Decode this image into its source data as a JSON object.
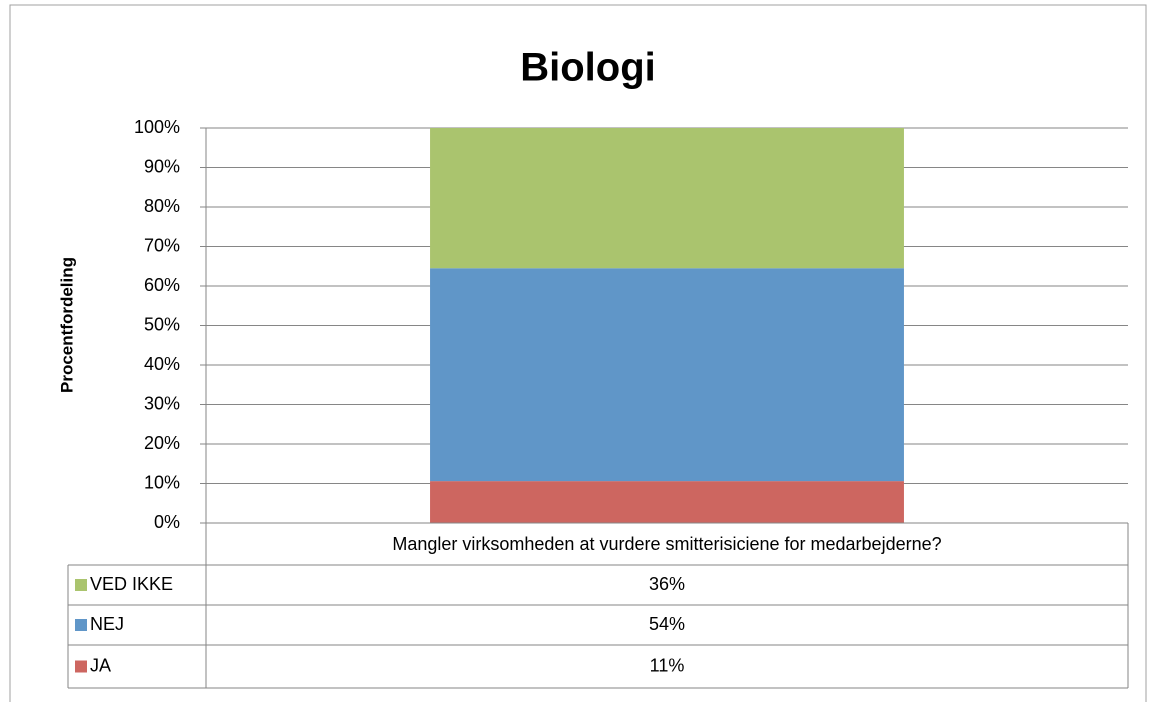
{
  "chart_data": {
    "type": "stacked_bar",
    "title": "Biologi",
    "y_label": "Procentfordeling",
    "categories": [
      "Mangler virksomheden at vurdere smitterisiciene for medarbejderne?"
    ],
    "series": [
      {
        "name": "JA",
        "color": "#cd6660",
        "values": [
          10.6
        ],
        "value_labels": [
          "11%"
        ]
      },
      {
        "name": "NEJ",
        "color": "#6096c8",
        "values": [
          53.9
        ],
        "value_labels": [
          "54%"
        ]
      },
      {
        "name": "VED IKKE",
        "color": "#aac46e",
        "values": [
          35.5
        ],
        "value_labels": [
          "36%"
        ]
      }
    ],
    "ylim": [
      0,
      100
    ],
    "yticks": [
      {
        "value": 0,
        "label": "0%"
      },
      {
        "value": 10,
        "label": "10%"
      },
      {
        "value": 20,
        "label": "20%"
      },
      {
        "value": 30,
        "label": "30%"
      },
      {
        "value": 40,
        "label": "40%"
      },
      {
        "value": 50,
        "label": "50%"
      },
      {
        "value": 60,
        "label": "60%"
      },
      {
        "value": 70,
        "label": "70%"
      },
      {
        "value": 80,
        "label": "80%"
      },
      {
        "value": 90,
        "label": "90%"
      },
      {
        "value": 100,
        "label": "100%"
      }
    ],
    "grid": true
  }
}
